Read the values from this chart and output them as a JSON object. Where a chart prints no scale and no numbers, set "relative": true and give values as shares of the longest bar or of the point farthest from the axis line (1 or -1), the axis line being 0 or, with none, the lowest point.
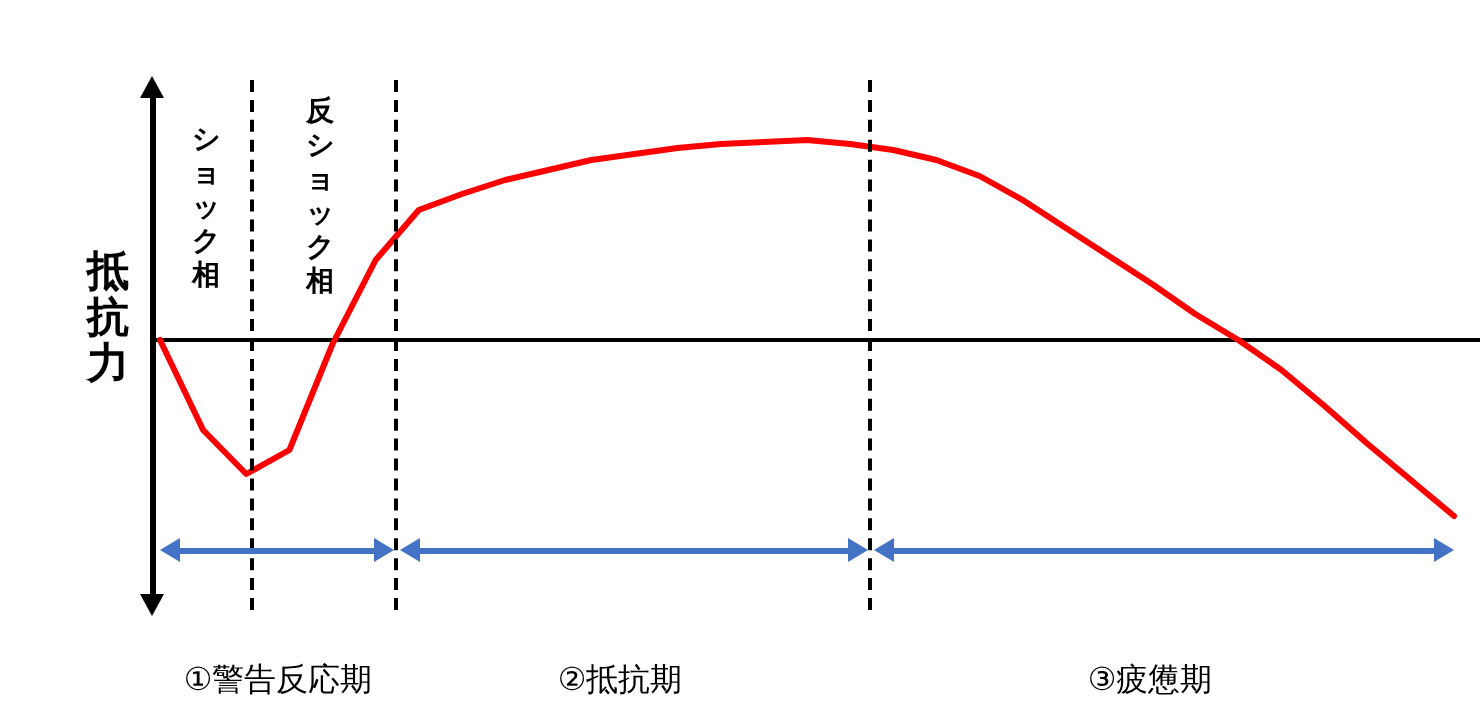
{
  "chart_data": {
    "type": "line",
    "relative": true,
    "ylabel": "抵抗力",
    "marker": "none",
    "line_style": "solid",
    "categories": [
      null,
      null,
      null,
      null,
      null,
      null,
      null,
      null,
      null,
      null,
      null,
      null,
      null,
      null,
      null,
      null,
      null,
      null,
      null,
      null,
      null,
      null,
      null,
      null,
      null,
      null,
      null,
      null,
      null,
      null,
      null
    ],
    "series": [
      {
        "color": "#ff0000",
        "values": [
          0,
          -0.45,
          -0.67,
          -0.55,
          -0.02,
          0.4,
          0.65,
          0.73,
          0.8,
          0.85,
          0.9,
          0.93,
          0.96,
          0.98,
          0.99,
          1,
          0.98,
          0.95,
          0.9,
          0.82,
          0.7,
          0.56,
          0.42,
          0.28,
          0.13,
          0,
          -0.15,
          -0.33,
          -0.52,
          -0.7,
          -0.88
        ]
      }
    ],
    "annotations": [
      "ショック相",
      "反ショック相",
      "①警告反応期",
      "②抵抗期",
      "③疲憊期"
    ]
  }
}
